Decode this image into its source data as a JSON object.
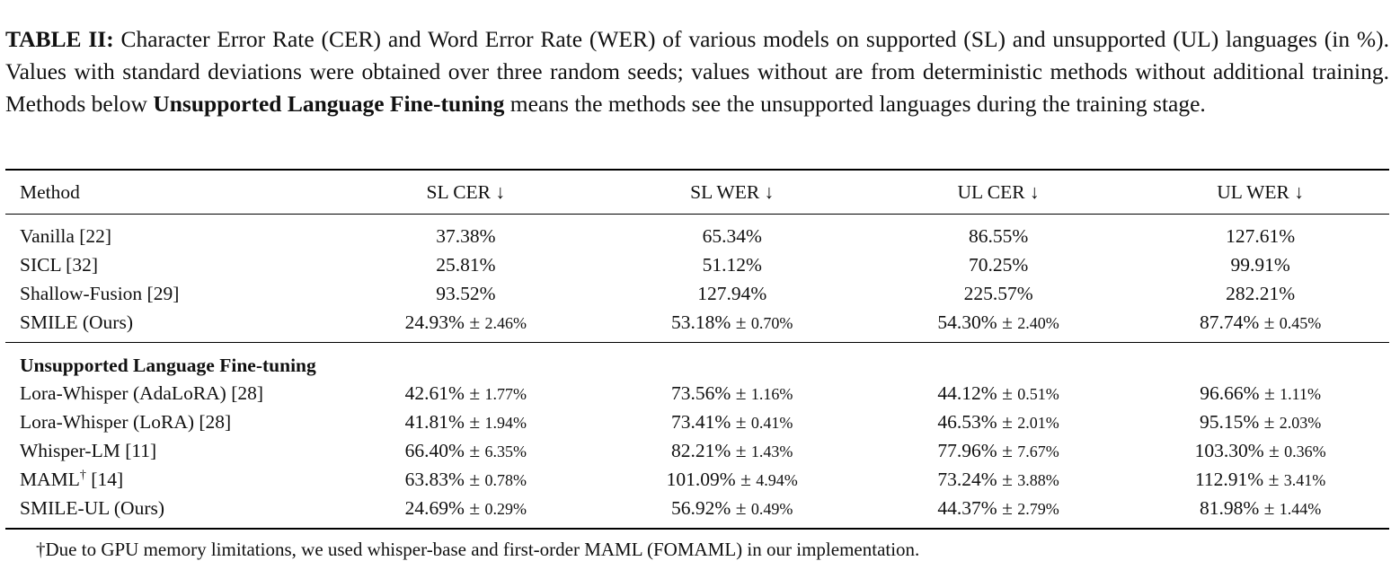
{
  "caption": {
    "label": "TABLE II:",
    "text1": " Character Error Rate (CER) and Word Error Rate (WER) of various models on supported (SL) and unsupported (UL) languages (in %). Values with standard deviations were obtained over three random seeds; values without are from deterministic methods without additional training. Methods below ",
    "emph": "Unsupported Language Fine-tuning",
    "text2": " means the methods see the unsupported languages during the training stage."
  },
  "table": {
    "headers": [
      "Method",
      "SL CER ↓",
      "SL WER ↓",
      "UL CER ↓",
      "UL WER ↓"
    ],
    "rows_group1": [
      {
        "method": "Vanilla [22]",
        "sl_cer": "37.38%",
        "sl_cer_std": "",
        "sl_wer": "65.34%",
        "sl_wer_std": "",
        "ul_cer": "86.55%",
        "ul_cer_std": "",
        "ul_wer": "127.61%",
        "ul_wer_std": ""
      },
      {
        "method": "SICL [32]",
        "sl_cer": "25.81%",
        "sl_cer_std": "",
        "sl_wer": "51.12%",
        "sl_wer_std": "",
        "ul_cer": "70.25%",
        "ul_cer_std": "",
        "ul_wer": "99.91%",
        "ul_wer_std": ""
      },
      {
        "method": "Shallow-Fusion [29]",
        "sl_cer": "93.52%",
        "sl_cer_std": "",
        "sl_wer": "127.94%",
        "sl_wer_std": "",
        "ul_cer": "225.57%",
        "ul_cer_std": "",
        "ul_wer": "282.21%",
        "ul_wer_std": ""
      },
      {
        "method": "SMILE (Ours)",
        "sl_cer": "24.93%",
        "sl_cer_std": "2.46%",
        "sl_wer": "53.18%",
        "sl_wer_std": "0.70%",
        "ul_cer": "54.30%",
        "ul_cer_std": "2.40%",
        "ul_wer": "87.74%",
        "ul_wer_std": "0.45%"
      }
    ],
    "section2_title": "Unsupported Language Fine-tuning",
    "rows_group2": [
      {
        "method": "Lora-Whisper (AdaLoRA) [28]",
        "sl_cer": "42.61%",
        "sl_cer_std": "1.77%",
        "sl_wer": "73.56%",
        "sl_wer_std": "1.16%",
        "ul_cer": "44.12%",
        "ul_cer_std": "0.51%",
        "ul_wer": "96.66%",
        "ul_wer_std": "1.11%"
      },
      {
        "method": "Lora-Whisper (LoRA) [28]",
        "sl_cer": "41.81%",
        "sl_cer_std": "1.94%",
        "sl_wer": "73.41%",
        "sl_wer_std": "0.41%",
        "ul_cer": "46.53%",
        "ul_cer_std": "2.01%",
        "ul_wer": "95.15%",
        "ul_wer_std": "2.03%"
      },
      {
        "method": "Whisper-LM [11]",
        "sl_cer": "66.40%",
        "sl_cer_std": "6.35%",
        "sl_wer": "82.21%",
        "sl_wer_std": "1.43%",
        "ul_cer": "77.96%",
        "ul_cer_std": "7.67%",
        "ul_wer": "103.30%",
        "ul_wer_std": "0.36%"
      },
      {
        "method": "MAML",
        "method_sup": "†",
        "method_ref": " [14]",
        "sl_cer": "63.83%",
        "sl_cer_std": "0.78%",
        "sl_wer": "101.09%",
        "sl_wer_std": "4.94%",
        "ul_cer": "73.24%",
        "ul_cer_std": "3.88%",
        "ul_wer": "112.91%",
        "ul_wer_std": "3.41%"
      },
      {
        "method": "SMILE-UL (Ours)",
        "sl_cer": "24.69%",
        "sl_cer_std": "0.29%",
        "sl_wer": "56.92%",
        "sl_wer_std": "0.49%",
        "ul_cer": "44.37%",
        "ul_cer_std": "2.79%",
        "ul_wer": "81.98%",
        "ul_wer_std": "1.44%"
      }
    ]
  },
  "footnote": "†Due to GPU memory limitations, we used whisper-base and first-order MAML (FOMAML) in our implementation."
}
